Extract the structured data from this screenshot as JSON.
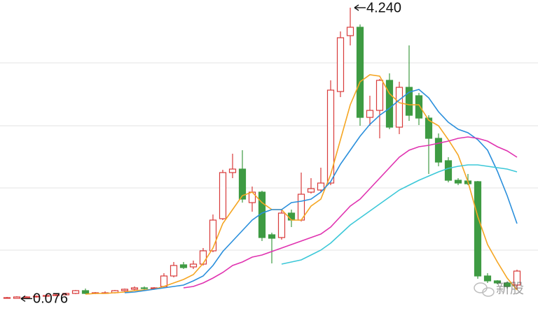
{
  "chart_data": {
    "type": "candlestick",
    "open": [
      0.09,
      0.08,
      0.1,
      0.1,
      0.11,
      0.12,
      0.13,
      0.15,
      0.19,
      0.15,
      0.16,
      0.16,
      0.19,
      0.21,
      0.23,
      0.22,
      0.25,
      0.4,
      0.56,
      0.53,
      0.57,
      0.76,
      1.22,
      1.88,
      1.93,
      1.45,
      1.6,
      0.99,
      0.95,
      1.3,
      1.2,
      1.6,
      1.63,
      1.73,
      3.04,
      3.84,
      3.96,
      2.67,
      2.77,
      3.2,
      2.53,
      3.1,
      2.98,
      2.66,
      2.37,
      2.05,
      1.77,
      1.76,
      1.75,
      0.4,
      0.33,
      0.3,
      0.27
    ],
    "high": [
      0.1,
      0.11,
      0.11,
      0.12,
      0.13,
      0.14,
      0.16,
      0.2,
      0.22,
      0.17,
      0.18,
      0.2,
      0.22,
      0.25,
      0.25,
      0.24,
      0.44,
      0.6,
      0.6,
      0.62,
      0.8,
      1.28,
      1.92,
      2.15,
      2.2,
      1.68,
      1.62,
      1.02,
      1.36,
      1.35,
      1.88,
      1.8,
      1.95,
      3.2,
      3.9,
      4.24,
      4.0,
      2.98,
      3.22,
      3.3,
      3.18,
      3.7,
      3.02,
      2.7,
      2.44,
      2.1,
      1.8,
      1.86,
      1.76,
      0.44,
      0.34,
      0.32,
      0.49
    ],
    "low": [
      0.08,
      0.076,
      0.09,
      0.09,
      0.1,
      0.11,
      0.12,
      0.14,
      0.14,
      0.14,
      0.15,
      0.15,
      0.17,
      0.19,
      0.2,
      0.21,
      0.23,
      0.38,
      0.5,
      0.5,
      0.55,
      0.74,
      1.2,
      1.8,
      1.45,
      1.32,
      0.9,
      0.58,
      0.92,
      1.1,
      1.18,
      1.58,
      1.6,
      1.7,
      2.96,
      3.7,
      2.55,
      2.55,
      2.37,
      2.5,
      2.43,
      2.62,
      2.56,
      1.86,
      1.97,
      1.74,
      1.7,
      1.7,
      0.36,
      0.3,
      0.28,
      0.22,
      0.2
    ],
    "close": [
      0.09,
      0.1,
      0.1,
      0.11,
      0.12,
      0.13,
      0.15,
      0.19,
      0.15,
      0.16,
      0.16,
      0.19,
      0.21,
      0.23,
      0.22,
      0.23,
      0.4,
      0.55,
      0.52,
      0.57,
      0.76,
      1.2,
      1.88,
      1.93,
      1.5,
      1.6,
      0.95,
      0.94,
      1.3,
      1.2,
      1.57,
      1.65,
      1.73,
      3.06,
      3.81,
      3.96,
      2.67,
      2.77,
      3.2,
      2.53,
      3.1,
      2.7,
      2.66,
      2.37,
      2.03,
      1.77,
      1.73,
      1.72,
      0.4,
      0.33,
      0.3,
      0.25,
      0.47
    ],
    "up_color": "#d83a3a",
    "down_color": "#3e9b43",
    "moving_averages": [
      {
        "color": "#f5a623",
        "values": [
          null,
          null,
          null,
          null,
          null,
          null,
          null,
          null,
          0.14,
          0.15,
          0.15,
          0.16,
          0.17,
          0.19,
          0.2,
          0.21,
          0.25,
          0.3,
          0.35,
          0.42,
          0.58,
          0.8,
          1.15,
          1.35,
          1.55,
          1.6,
          1.45,
          1.35,
          1.35,
          1.2,
          1.2,
          1.4,
          1.5,
          1.85,
          2.35,
          2.85,
          3.18,
          3.28,
          3.26,
          3.01,
          2.88,
          2.85,
          2.85,
          2.63,
          2.55,
          2.35,
          2.13,
          1.75,
          1.25,
          0.85,
          0.6,
          0.37,
          0.2
        ]
      },
      {
        "color": "#2a8fdc",
        "values": [
          null,
          null,
          null,
          null,
          null,
          null,
          null,
          null,
          null,
          null,
          null,
          null,
          0.16,
          0.17,
          0.19,
          0.21,
          0.23,
          0.25,
          0.27,
          0.33,
          0.4,
          0.55,
          0.75,
          0.9,
          1.05,
          1.2,
          1.3,
          1.35,
          1.35,
          1.45,
          1.47,
          1.5,
          1.6,
          1.75,
          2.0,
          2.2,
          2.4,
          2.57,
          2.7,
          2.8,
          2.92,
          3.03,
          3.07,
          2.95,
          2.75,
          2.6,
          2.5,
          2.45,
          2.35,
          2.2,
          1.9,
          1.55,
          1.15
        ]
      },
      {
        "color": "#e033b0",
        "values": [
          null,
          null,
          null,
          null,
          null,
          null,
          null,
          null,
          null,
          null,
          null,
          null,
          null,
          null,
          null,
          null,
          null,
          null,
          0.23,
          0.25,
          0.3,
          0.37,
          0.45,
          0.55,
          0.6,
          0.67,
          0.7,
          0.75,
          0.8,
          0.85,
          0.9,
          0.95,
          1.0,
          1.1,
          1.25,
          1.4,
          1.5,
          1.65,
          1.8,
          1.95,
          2.1,
          2.2,
          2.25,
          2.27,
          2.3,
          2.33,
          2.37,
          2.39,
          2.37,
          2.33,
          2.25,
          2.19,
          2.1
        ]
      },
      {
        "color": "#3cc8d8",
        "values": [
          null,
          null,
          null,
          null,
          null,
          null,
          null,
          null,
          null,
          null,
          null,
          null,
          null,
          null,
          null,
          null,
          null,
          null,
          null,
          null,
          null,
          null,
          null,
          null,
          null,
          null,
          null,
          null,
          0.57,
          0.6,
          0.63,
          0.7,
          0.77,
          0.87,
          1.0,
          1.13,
          1.23,
          1.33,
          1.43,
          1.53,
          1.63,
          1.7,
          1.77,
          1.83,
          1.89,
          1.94,
          1.97,
          1.99,
          1.99,
          1.97,
          1.95,
          1.93,
          1.89
        ]
      }
    ],
    "ylim": [
      -0.13,
      4.35
    ],
    "yticks": [
      0.77,
      1.66,
      2.55,
      3.45
    ],
    "grid": true,
    "max_label": "4.240",
    "min_label": "0.076",
    "watermark": "新股"
  }
}
